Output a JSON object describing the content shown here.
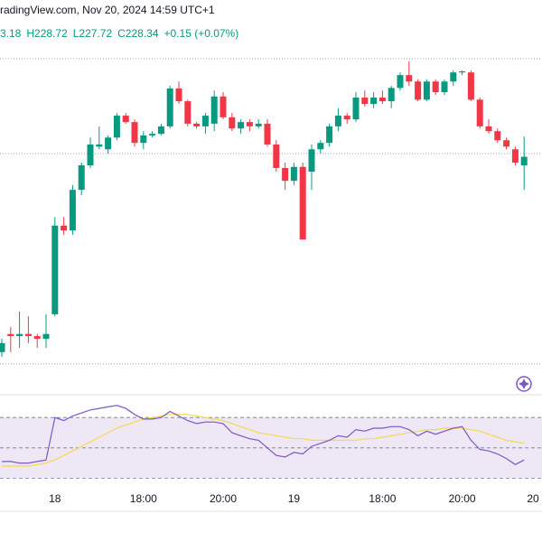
{
  "chart_data": {
    "type": "candlestick",
    "title": "radingView.com, Nov 20, 2024 14:59 UTC+1",
    "legend_text": [
      "3.18",
      "H228.72",
      "L227.72",
      "C228.34",
      "+0.15 (+0.07%)"
    ],
    "up_color": "#089981",
    "down_color": "#f23645",
    "categories": [
      null,
      null,
      null,
      null,
      null,
      null,
      "18",
      null,
      null,
      null,
      null,
      null,
      null,
      null,
      null,
      null,
      "18:00",
      null,
      null,
      null,
      null,
      null,
      null,
      null,
      null,
      "20:00",
      null,
      null,
      null,
      null,
      null,
      null,
      null,
      "19",
      null,
      null,
      null,
      null,
      null,
      null,
      null,
      null,
      null,
      "18:00",
      null,
      null,
      null,
      null,
      null,
      null,
      null,
      null,
      "20:00",
      null,
      null,
      null,
      null,
      null,
      null,
      null,
      "20"
    ],
    "open": [
      224.68,
      225.02,
      224.98,
      225.02,
      224.98,
      224.93,
      225.39,
      227.05,
      226.96,
      227.72,
      228.18,
      228.53,
      228.48,
      228.7,
      229.11,
      228.99,
      228.6,
      228.74,
      228.77,
      228.91,
      229.62,
      229.38,
      228.96,
      228.91,
      228.96,
      229.47,
      229.08,
      228.87,
      228.99,
      228.91,
      228.96,
      228.57,
      228.13,
      227.89,
      228.15,
      228.06,
      228.48,
      228.6,
      228.91,
      229.11,
      229.04,
      229.45,
      229.33,
      229.45,
      229.38,
      229.63,
      229.87,
      229.75,
      229.41,
      229.75,
      229.55,
      229.75,
      229.92,
      229.92,
      229.41,
      228.91,
      228.82,
      228.65,
      228.48,
      228.18,
      null
    ],
    "high": [
      224.93,
      225.15,
      225.44,
      225.35,
      225.02,
      225.39,
      227.21,
      227.21,
      227.81,
      228.23,
      228.7,
      228.91,
      228.74,
      229.16,
      229.16,
      229.04,
      228.82,
      228.82,
      228.96,
      229.67,
      229.75,
      229.41,
      228.99,
      229.16,
      229.58,
      229.55,
      229.16,
      229.04,
      229.04,
      229.04,
      229.04,
      228.65,
      228.23,
      228.23,
      228.23,
      228.57,
      228.65,
      228.96,
      229.25,
      229.16,
      229.55,
      229.58,
      229.55,
      229.58,
      229.67,
      229.92,
      230.13,
      229.79,
      229.79,
      229.79,
      229.79,
      229.96,
      229.96,
      229.96,
      229.45,
      229.04,
      228.87,
      228.7,
      228.53,
      228.72,
      null
    ],
    "low": [
      224.59,
      224.68,
      224.76,
      224.85,
      224.76,
      224.76,
      225.35,
      226.88,
      226.88,
      227.62,
      228.13,
      228.48,
      228.4,
      228.65,
      228.96,
      228.53,
      228.48,
      228.7,
      228.74,
      228.87,
      229.33,
      228.91,
      228.87,
      228.77,
      228.82,
      229.04,
      228.82,
      228.77,
      228.82,
      228.87,
      228.53,
      228.06,
      227.72,
      227.81,
      226.79,
      227.72,
      228.4,
      228.53,
      228.82,
      228.96,
      228.99,
      229.28,
      229.25,
      229.33,
      229.25,
      229.58,
      229.67,
      229.38,
      229.38,
      229.5,
      229.5,
      229.67,
      229.87,
      229.38,
      228.87,
      228.77,
      228.6,
      228.48,
      228.18,
      227.72,
      null
    ],
    "close": [
      224.85,
      224.98,
      225.02,
      224.98,
      224.93,
      225.02,
      227.05,
      226.96,
      227.72,
      228.18,
      228.57,
      228.57,
      228.7,
      229.11,
      228.99,
      228.6,
      228.74,
      228.77,
      228.91,
      229.62,
      229.38,
      228.96,
      228.91,
      229.11,
      229.47,
      229.08,
      228.87,
      228.99,
      228.91,
      228.96,
      228.57,
      228.13,
      227.89,
      228.15,
      226.79,
      228.48,
      228.6,
      228.91,
      229.11,
      229.04,
      229.45,
      229.33,
      229.45,
      229.38,
      229.63,
      229.87,
      229.75,
      229.41,
      229.75,
      229.55,
      229.75,
      229.92,
      229.94,
      229.41,
      228.91,
      228.82,
      228.65,
      228.53,
      228.23,
      228.34,
      null
    ],
    "ylim": [
      224,
      230.6
    ],
    "levels": [
      230.18,
      228.4,
      224.46
    ],
    "rsi": {
      "color": "#7e57c2",
      "ma_color": "#f7d94c",
      "band_color": "#ede7f6",
      "ylim": [
        10,
        85
      ],
      "levels": [
        70,
        50,
        30
      ],
      "values": [
        41,
        41,
        40,
        40,
        41,
        42,
        70,
        68,
        71,
        73,
        75,
        76,
        77,
        78,
        76,
        72,
        69,
        69,
        70,
        74,
        71,
        68,
        66,
        67,
        67,
        66,
        60,
        58,
        56,
        55,
        50,
        45,
        44,
        47,
        46,
        51,
        53,
        55,
        58,
        57,
        62,
        61,
        63,
        63,
        64,
        64,
        62,
        58,
        61,
        59,
        61,
        63,
        64,
        55,
        49,
        48,
        46,
        43,
        39,
        42,
        null
      ],
      "ma": [
        38,
        38,
        38,
        38,
        39,
        40,
        42,
        45,
        48,
        51,
        54,
        57,
        60,
        63,
        65,
        67,
        69,
        70,
        71,
        72,
        72,
        72,
        71,
        70,
        69,
        68,
        66,
        64,
        62,
        60,
        59,
        58,
        57,
        56,
        56,
        55,
        55,
        55,
        55,
        55,
        55,
        56,
        56,
        57,
        58,
        59,
        60,
        61,
        62,
        62,
        63,
        63,
        63,
        62,
        61,
        59,
        57,
        55,
        54,
        53,
        null
      ]
    }
  }
}
